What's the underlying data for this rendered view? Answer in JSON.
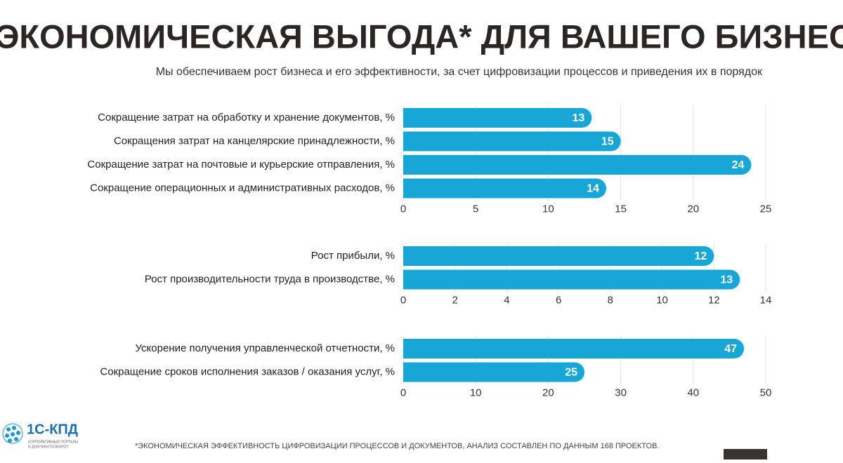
{
  "header": {
    "title": "ЭКОНОМИЧЕСКАЯ ВЫГОДА* ДЛЯ ВАШЕГО БИЗНЕСА",
    "subtitle": "Мы обеспечиваем рост бизнеса и его эффективности,  за счет цифровизации процессов и приведения их в порядок"
  },
  "chart_data": [
    {
      "type": "bar",
      "orientation": "horizontal",
      "color": "#17a6d6",
      "grid": true,
      "categories": [
        "Сокращение затрат на обработку и хранение документов, %",
        "Сокращения затрат на канцелярские принадлежности, %",
        "Сокращение затрат на почтовые и курьерские отправления, %",
        "Сокращение операционных и административных расходов, %"
      ],
      "values": [
        13,
        15,
        24,
        14
      ],
      "xlim": [
        0,
        25
      ],
      "xticks": [
        0,
        5,
        10,
        15,
        20,
        25
      ]
    },
    {
      "type": "bar",
      "orientation": "horizontal",
      "color": "#17a6d6",
      "grid": true,
      "categories": [
        "Рост прибыли, %",
        "Рост производительности труда в производстве, %"
      ],
      "values": [
        12,
        13
      ],
      "xlim": [
        0,
        14
      ],
      "xticks": [
        0,
        2,
        4,
        6,
        8,
        10,
        12,
        14
      ]
    },
    {
      "type": "bar",
      "orientation": "horizontal",
      "color": "#17a6d6",
      "grid": true,
      "categories": [
        "Ускорение получения управленческой отчетности, %",
        "Сокращение сроков исполнения заказов / оказания услуг, %"
      ],
      "values": [
        47,
        25
      ],
      "xlim": [
        0,
        50
      ],
      "xticks": [
        0,
        10,
        20,
        30,
        40,
        50
      ]
    }
  ],
  "footer": {
    "logo": "1С-КПД",
    "logo_caption_1": "КОРПОРАТИВНЫЕ ПОРТАЛЫ",
    "logo_caption_2": "И ДОКУМЕНТООБОРОТ",
    "note": "*ЭКОНОМИЧЕСКАЯ ЭФФЕКТИВНОСТЬ ЦИФРОВИЗАЦИИ ПРОЦЕССОВ И ДОКУМЕНТОВ, АНАЛИЗ СОСТАВЛЕН ПО ДАННЫМ 168 ПРОЕКТОВ."
  }
}
